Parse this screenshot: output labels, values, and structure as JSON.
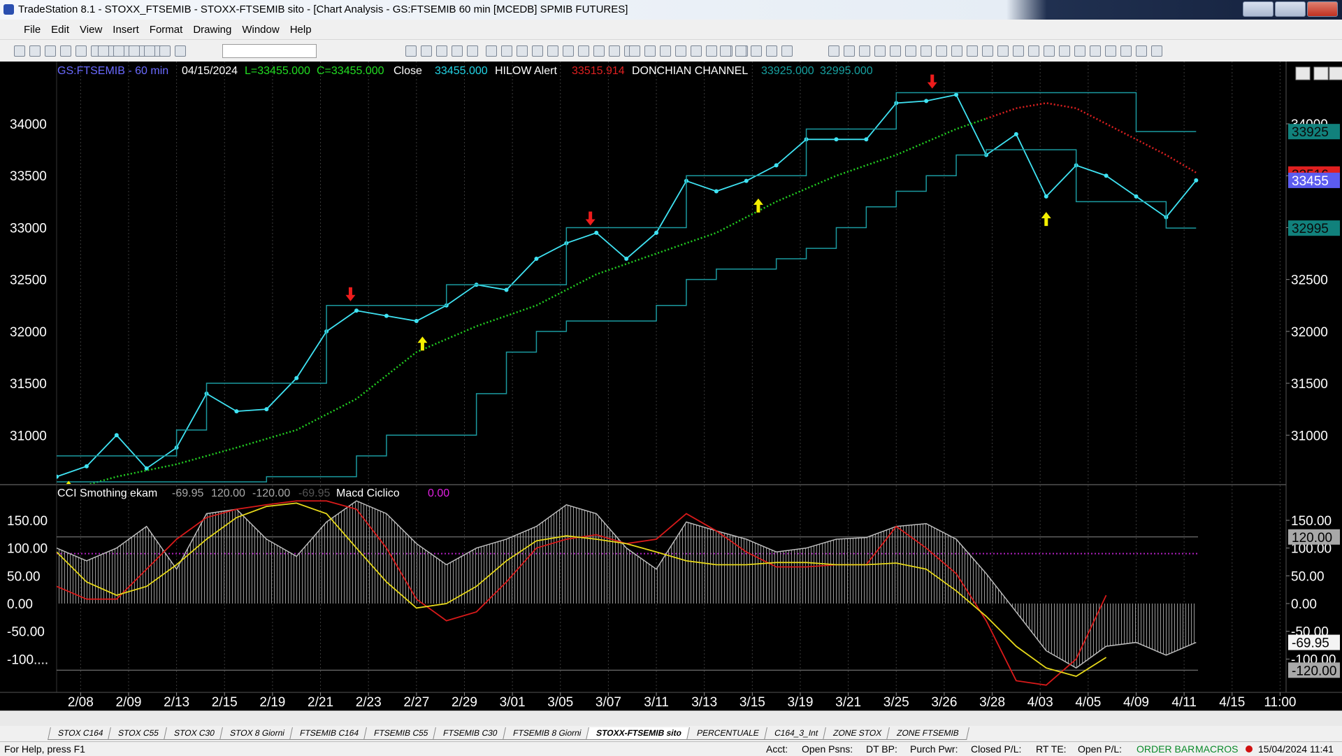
{
  "window": {
    "title": "TradeStation 8.1 - STOXX_FTSEMIB - STOXX-FTSEMIB sito - [Chart Analysis - GS:FTSEMIB  60 min  [MCEDB] SPMIB FUTURES]",
    "menu": [
      "File",
      "Edit",
      "View",
      "Insert",
      "Format",
      "Drawing",
      "Window",
      "Help"
    ],
    "tabs": [
      "STOX C164",
      "STOX C55",
      "STOX C30",
      "STOX 8 Giorni",
      "FTSEMIB C164",
      "FTSEMIB C55",
      "FTSEMIB C30",
      "FTSEMIB 8 Giorni",
      "STOXX-FTSEMIB sito",
      "PERCENTUALE",
      "C164_3_Int",
      "ZONE STOX",
      "ZONE FTSEMIB"
    ],
    "active_tab": 8,
    "status": {
      "help": "For Help, press F1",
      "fields": [
        "Acct:",
        "Open Psns:",
        "DT BP:",
        "Purch Pwr:",
        "Closed P/L:",
        "RT TE:",
        "Open P/L:"
      ],
      "order_bar": "ORDER BAR",
      "macros": "MACROS",
      "datetime": "15/04/2024 11:41"
    }
  },
  "chart_data": [
    {
      "type": "line",
      "header": [
        {
          "text": "GS:FTSEMIB - 60 min",
          "color": "#6a6aff"
        },
        {
          "text": "04/15/2024",
          "color": "#ffffff"
        },
        {
          "text": "L=33455.000",
          "color": "#22dd22"
        },
        {
          "text": "C=33455.000",
          "color": "#22dd22"
        },
        {
          "text": "Close",
          "color": "#ffffff"
        },
        {
          "text": "33455.000",
          "color": "#22d4e6"
        },
        {
          "text": "HILOW Alert",
          "color": "#ffffff"
        },
        {
          "text": "33515.914",
          "color": "#e02020"
        },
        {
          "text": "DONCHIAN CHANNEL",
          "color": "#ffffff"
        },
        {
          "text": "33925.000",
          "color": "#17a0a0"
        },
        {
          "text": "32995.000",
          "color": "#17a0a0"
        }
      ],
      "xlim": [
        0,
        205
      ],
      "ylim": [
        30530,
        34600
      ],
      "yticks": [
        {
          "value": 34000,
          "label": "34000"
        },
        {
          "value": 33500,
          "label": "33500"
        },
        {
          "value": 33000,
          "label": "33000"
        },
        {
          "value": 32500,
          "label": "32500"
        },
        {
          "value": 32000,
          "label": "32000"
        },
        {
          "value": 31500,
          "label": "31500"
        },
        {
          "value": 31000,
          "label": "31000"
        }
      ],
      "series": [
        {
          "style": "dots",
          "color": "#3fe3f3",
          "x": [
            0,
            5,
            10,
            15,
            20,
            25,
            30,
            35,
            40,
            45,
            50,
            55,
            60,
            65,
            70,
            75,
            80,
            85,
            90,
            95,
            100,
            105,
            110,
            115,
            120,
            125,
            130,
            135,
            140,
            145,
            150,
            155,
            160,
            165,
            170,
            175,
            180,
            185,
            190
          ],
          "values": [
            30600,
            30700,
            31000,
            30680,
            30880,
            31400,
            31230,
            31250,
            31550,
            32000,
            32200,
            32150,
            32100,
            32250,
            32450,
            32400,
            32700,
            32850,
            32950,
            32700,
            32950,
            33450,
            33350,
            33450,
            33600,
            33850,
            33850,
            33850,
            34200,
            34220,
            34280,
            33700,
            33900,
            33300,
            33600,
            33500,
            33300,
            33100,
            33455
          ]
        },
        {
          "style": "dotted",
          "color": "#22cc22",
          "x": [
            5,
            10,
            20,
            30,
            40,
            50,
            60,
            70,
            80,
            90,
            100,
            110,
            120,
            130,
            140,
            150,
            155
          ],
          "values": [
            30520,
            30600,
            30720,
            30880,
            31050,
            31350,
            31800,
            32050,
            32250,
            32550,
            32750,
            32950,
            33250,
            33500,
            33700,
            33950,
            34050
          ]
        },
        {
          "style": "dotted",
          "color": "#dd2020",
          "x": [
            155,
            160,
            165,
            170,
            175,
            180,
            185,
            190
          ],
          "values": [
            34050,
            34150,
            34200,
            34150,
            34000,
            33850,
            33700,
            33530
          ]
        },
        {
          "style": "step",
          "color": "#1b9aa0",
          "x": [
            0,
            5,
            10,
            15,
            20,
            25,
            30,
            35,
            40,
            45,
            50,
            55,
            60,
            65,
            70,
            75,
            80,
            85,
            90,
            95,
            100,
            105,
            110,
            115,
            120,
            125,
            130,
            135,
            140,
            145,
            150,
            155,
            160,
            165,
            170,
            175,
            180,
            185,
            190
          ],
          "values": [
            30800,
            30800,
            30800,
            30800,
            31050,
            31500,
            31500,
            31500,
            31500,
            32250,
            32250,
            32250,
            32250,
            32450,
            32450,
            32450,
            32450,
            33000,
            33000,
            33000,
            33000,
            33500,
            33500,
            33500,
            33500,
            33950,
            33950,
            33950,
            34300,
            34300,
            34300,
            34300,
            34300,
            34300,
            34300,
            34300,
            33925,
            33925,
            33925
          ]
        },
        {
          "style": "step",
          "color": "#1b9aa0",
          "x": [
            0,
            5,
            10,
            15,
            20,
            25,
            30,
            35,
            40,
            45,
            50,
            55,
            60,
            65,
            70,
            75,
            80,
            85,
            90,
            95,
            100,
            105,
            110,
            115,
            120,
            125,
            130,
            135,
            140,
            145,
            150,
            155,
            160,
            165,
            170,
            175,
            180,
            185,
            190
          ],
          "values": [
            30550,
            30550,
            30550,
            30550,
            30550,
            30550,
            30550,
            30600,
            30600,
            30600,
            30800,
            31000,
            31000,
            31000,
            31400,
            31800,
            32000,
            32100,
            32100,
            32100,
            32250,
            32500,
            32600,
            32600,
            32700,
            32800,
            33000,
            33200,
            33350,
            33500,
            33700,
            33750,
            33750,
            33750,
            33250,
            33250,
            33250,
            32995,
            32995
          ]
        }
      ],
      "markers": [
        {
          "shape": "down",
          "color": "#ee1c1c",
          "x": 49,
          "value": 32290
        },
        {
          "shape": "down",
          "color": "#ee1c1c",
          "x": 89,
          "value": 33020
        },
        {
          "shape": "down",
          "color": "#ee1c1c",
          "x": 146,
          "value": 34340
        },
        {
          "shape": "up",
          "color": "#f5f000",
          "x": 61,
          "value": 31950
        },
        {
          "shape": "up",
          "color": "#f5f000",
          "x": 117,
          "value": 33280
        },
        {
          "shape": "up",
          "color": "#f5f000",
          "x": 165,
          "value": 33150
        },
        {
          "shape": "up",
          "color": "#f5f000",
          "x": 2,
          "value": 30560
        }
      ],
      "value_boxes": [
        {
          "value": 33925,
          "color": "#11817c",
          "text_color": "#0a0a0a"
        },
        {
          "value": 33516,
          "color": "#e02020",
          "text_color": "#0a0a0a"
        },
        {
          "value": 33455,
          "color": "#5c5cf0",
          "text_color": "#ffffff"
        },
        {
          "value": 32995,
          "color": "#11817c",
          "text_color": "#0a0a0a"
        }
      ]
    },
    {
      "type": "line",
      "header": [
        {
          "text": "CCI Smothing ekam",
          "color": "#ffffff"
        },
        {
          "text": "-69.95",
          "color": "#a8a8a8"
        },
        {
          "text": "120.00",
          "color": "#a8a8a8"
        },
        {
          "text": "-120.00",
          "color": "#a8a8a8"
        },
        {
          "text": "-69.95",
          "color": "#555555"
        },
        {
          "text": "Macd Ciclico",
          "color": "#ffffff"
        },
        {
          "text": "0.00",
          "color": "#e020e0"
        }
      ],
      "xlim": [
        0,
        205
      ],
      "ylim": [
        -160,
        213
      ],
      "xticks": [
        {
          "value": 4,
          "label": "2/08"
        },
        {
          "value": 12,
          "label": "2/09"
        },
        {
          "value": 20,
          "label": "2/13"
        },
        {
          "value": 28,
          "label": "2/15"
        },
        {
          "value": 36,
          "label": "2/19"
        },
        {
          "value": 44,
          "label": "2/21"
        },
        {
          "value": 52,
          "label": "2/23"
        },
        {
          "value": 60,
          "label": "2/27"
        },
        {
          "value": 68,
          "label": "2/29"
        },
        {
          "value": 76,
          "label": "3/01"
        },
        {
          "value": 84,
          "label": "3/05"
        },
        {
          "value": 92,
          "label": "3/07"
        },
        {
          "value": 100,
          "label": "3/11"
        },
        {
          "value": 108,
          "label": "3/13"
        },
        {
          "value": 116,
          "label": "3/15"
        },
        {
          "value": 124,
          "label": "3/19"
        },
        {
          "value": 132,
          "label": "3/21"
        },
        {
          "value": 140,
          "label": "3/25"
        },
        {
          "value": 148,
          "label": "3/26"
        },
        {
          "value": 156,
          "label": "3/28"
        },
        {
          "value": 164,
          "label": "4/03"
        },
        {
          "value": 172,
          "label": "4/05"
        },
        {
          "value": 180,
          "label": "4/09"
        },
        {
          "value": 188,
          "label": "4/11"
        },
        {
          "value": 196,
          "label": "4/15"
        },
        {
          "value": 204,
          "label": "11:00"
        }
      ],
      "yticks": [
        {
          "value": 150,
          "label": "150.00"
        },
        {
          "value": 100,
          "label": "100.00"
        },
        {
          "value": 50,
          "label": "50.00"
        },
        {
          "value": 0,
          "label": "0.00"
        },
        {
          "value": -50,
          "label": "-50.00"
        },
        {
          "value": -100,
          "label": "-100...."
        }
      ],
      "right_ticks": [
        {
          "value": 150,
          "label": "150.00"
        },
        {
          "value": 100,
          "label": "100.00"
        },
        {
          "value": 50,
          "label": "50.00"
        },
        {
          "value": 0,
          "label": "0.00"
        },
        {
          "value": -50,
          "label": "-50.00"
        },
        {
          "value": -100,
          "label": "-100.00"
        }
      ],
      "hlines": [
        {
          "value": 120,
          "color": "#8a8a8a",
          "dashed": false
        },
        {
          "value": -120,
          "color": "#8a8a8a",
          "dashed": false
        },
        {
          "value": 90,
          "color": "#b020c0",
          "dashed": true
        }
      ],
      "series": [
        {
          "style": "histogram",
          "color": "#bdbdbd",
          "x": [
            0,
            5,
            10,
            15,
            20,
            25,
            30,
            35,
            40,
            45,
            50,
            55,
            60,
            65,
            70,
            75,
            80,
            85,
            90,
            95,
            100,
            105,
            110,
            115,
            120,
            125,
            130,
            135,
            140,
            145,
            150,
            155,
            160,
            165,
            170,
            175,
            180,
            185,
            190
          ],
          "values": [
            100,
            77,
            100,
            139,
            62,
            162,
            170,
            116,
            85,
            147,
            185,
            162,
            108,
            70,
            100,
            116,
            139,
            178,
            162,
            100,
            62,
            147,
            131,
            116,
            93,
            100,
            116,
            119,
            139,
            144,
            116,
            54,
            -15,
            -85,
            -116,
            -77,
            -70,
            -93,
            -70
          ]
        },
        {
          "style": "line",
          "color": "#d81a1a",
          "x": [
            0,
            5,
            10,
            15,
            20,
            25,
            30,
            35,
            40,
            45,
            50,
            55,
            60,
            65,
            70,
            75,
            80,
            85,
            90,
            95,
            100,
            105,
            110,
            115,
            120,
            125,
            130,
            135,
            140,
            145,
            150,
            155,
            160,
            165,
            170,
            175
          ],
          "values": [
            31,
            8,
            8,
            62,
            116,
            155,
            170,
            178,
            185,
            185,
            170,
            100,
            8,
            -31,
            -15,
            39,
            100,
            116,
            124,
            108,
            116,
            162,
            131,
            93,
            66,
            66,
            70,
            70,
            139,
            100,
            54,
            -31,
            -139,
            -147,
            -100,
            15
          ]
        },
        {
          "style": "line",
          "color": "#e6d81a",
          "x": [
            0,
            5,
            10,
            15,
            20,
            25,
            30,
            35,
            40,
            45,
            50,
            55,
            60,
            65,
            70,
            75,
            80,
            85,
            90,
            95,
            100,
            105,
            110,
            115,
            120,
            125,
            130,
            135,
            140,
            145,
            150,
            155,
            160,
            165,
            170,
            175
          ],
          "values": [
            93,
            39,
            15,
            31,
            70,
            116,
            155,
            175,
            181,
            162,
            100,
            39,
            -8,
            0,
            31,
            77,
            113,
            122,
            116,
            108,
            93,
            77,
            70,
            70,
            74,
            74,
            70,
            70,
            73,
            62,
            23,
            -23,
            -77,
            -116,
            -131,
            -97
          ]
        }
      ],
      "value_boxes": [
        {
          "value": 120,
          "label": "120.00",
          "color": "#a8a8a8",
          "text_color": "#000000"
        },
        {
          "value": -69.95,
          "label": "-69.95",
          "color": "#f4f4f4",
          "text_color": "#000000"
        },
        {
          "value": -120,
          "label": "-120.00",
          "color": "#a8a8a8",
          "text_color": "#000000"
        }
      ]
    }
  ]
}
